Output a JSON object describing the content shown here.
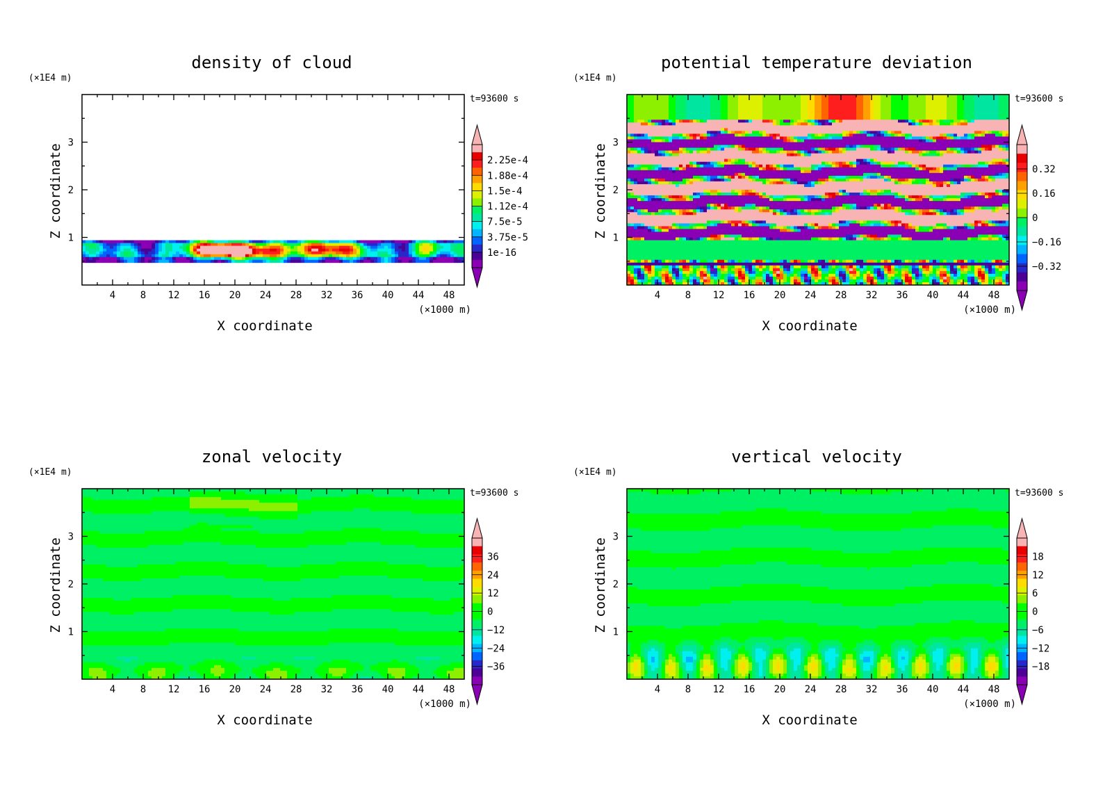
{
  "chart_data": [
    {
      "type": "heatmap",
      "title": "density of cloud",
      "xlabel": "X coordinate",
      "ylabel": "Z coordinate",
      "x_unit": "(×1000 m)",
      "y_unit": "(×1E4 m)",
      "time_label": "t=93600 s",
      "xlim": [
        0,
        50
      ],
      "ylim": [
        0,
        4
      ],
      "xticks": [
        "4",
        "8",
        "12",
        "16",
        "20",
        "24",
        "28",
        "32",
        "36",
        "40",
        "44",
        "48"
      ],
      "yticks": [
        "1",
        "2",
        "3"
      ],
      "colorbar_labels": [
        "2.25e-4",
        "1.88e-4",
        "1.5e-4",
        "1.12e-4",
        "7.5e-5",
        "3.75e-5",
        "1e-16"
      ],
      "field": "cloud"
    },
    {
      "type": "heatmap",
      "title": "potential temperature deviation",
      "xlabel": "X coordinate",
      "ylabel": "Z coordinate",
      "x_unit": "(×1000 m)",
      "y_unit": "(×1E4 m)",
      "time_label": "t=93600 s",
      "xlim": [
        0,
        50
      ],
      "ylim": [
        0,
        4
      ],
      "xticks": [
        "4",
        "8",
        "12",
        "16",
        "20",
        "24",
        "28",
        "32",
        "36",
        "40",
        "44",
        "48"
      ],
      "yticks": [
        "1",
        "2",
        "3"
      ],
      "colorbar_labels": [
        "0.32",
        "0.16",
        "0",
        "−0.16",
        "−0.32"
      ],
      "field": "theta"
    },
    {
      "type": "heatmap",
      "title": "zonal velocity",
      "xlabel": "X coordinate",
      "ylabel": "Z coordinate",
      "x_unit": "(×1000 m)",
      "y_unit": "(×1E4 m)",
      "time_label": "t=93600 s",
      "xlim": [
        0,
        50
      ],
      "ylim": [
        0,
        4
      ],
      "xticks": [
        "4",
        "8",
        "12",
        "16",
        "20",
        "24",
        "28",
        "32",
        "36",
        "40",
        "44",
        "48"
      ],
      "yticks": [
        "1",
        "2",
        "3"
      ],
      "colorbar_labels": [
        "36",
        "24",
        "12",
        "0",
        "−12",
        "−24",
        "−36"
      ],
      "field": "u"
    },
    {
      "type": "heatmap",
      "title": "vertical velocity",
      "xlabel": "X coordinate",
      "ylabel": "Z coordinate",
      "x_unit": "(×1000 m)",
      "y_unit": "(×1E4 m)",
      "time_label": "t=93600 s",
      "xlim": [
        0,
        50
      ],
      "ylim": [
        0,
        4
      ],
      "xticks": [
        "4",
        "8",
        "12",
        "16",
        "20",
        "24",
        "28",
        "32",
        "36",
        "40",
        "44",
        "48"
      ],
      "yticks": [
        "1",
        "2",
        "3"
      ],
      "colorbar_labels": [
        "18",
        "12",
        "6",
        "0",
        "−6",
        "−12",
        "−18"
      ],
      "field": "w"
    }
  ]
}
